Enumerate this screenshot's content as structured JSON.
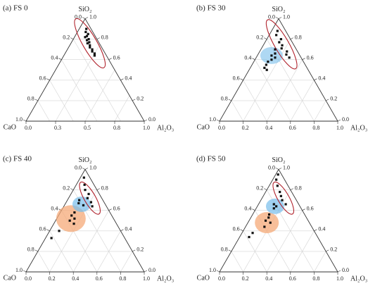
{
  "chart_data": [
    {
      "type": "ternary",
      "title": "(a) FS 0",
      "components": [
        "SiO₂",
        "CaO",
        "Al₂O₃"
      ],
      "ticks": [
        [
          {
            "value": 0,
            "label": "0.0"
          },
          {
            "value": 0.2,
            "label": "0.2"
          },
          {
            "value": 0.4,
            "label": "0.4"
          },
          {
            "value": 0.6,
            "label": "0.6"
          },
          {
            "value": 0.8,
            "label": "0.8"
          },
          {
            "value": 1,
            "label": "1.0"
          }
        ],
        [
          {
            "value": 0,
            "label": "0.0"
          },
          {
            "value": 0.2,
            "label": "0.2"
          },
          {
            "value": 0.4,
            "label": "0.4"
          },
          {
            "value": 0.6,
            "label": "0.6"
          },
          {
            "value": 0.8,
            "label": "0.8"
          },
          {
            "value": 1,
            "label": "1.0"
          }
        ],
        [
          {
            "value": 0,
            "label": "0.0"
          },
          {
            "value": 0.25,
            "label": "0.3"
          },
          {
            "value": 0.5,
            "label": "0.5"
          },
          {
            "value": 0.75,
            "label": "0.8"
          },
          {
            "value": 1,
            "label": "1.0"
          }
        ]
      ],
      "grid": true,
      "color": "#111111",
      "values": [
        [
          0.9,
          0.04,
          0.06
        ],
        [
          0.87,
          0.06,
          0.07
        ],
        [
          0.85,
          0.05,
          0.1
        ],
        [
          0.83,
          0.07,
          0.1
        ],
        [
          0.82,
          0.09,
          0.09
        ],
        [
          0.8,
          0.07,
          0.13
        ],
        [
          0.79,
          0.09,
          0.12
        ],
        [
          0.77,
          0.08,
          0.15
        ],
        [
          0.76,
          0.1,
          0.14
        ],
        [
          0.74,
          0.09,
          0.17
        ],
        [
          0.72,
          0.1,
          0.18
        ],
        [
          0.7,
          0.09,
          0.21
        ],
        [
          0.68,
          0.1,
          0.22
        ],
        [
          0.66,
          0.09,
          0.25
        ],
        [
          0.64,
          0.1,
          0.26
        ]
      ]
    },
    {
      "type": "ternary",
      "title": "(b) FS 30",
      "components": [
        "SiO₂",
        "CaO",
        "Al₂O₃"
      ],
      "ticks": [
        [
          {
            "value": 0,
            "label": "0.0"
          },
          {
            "value": 0.2,
            "label": "0.2"
          },
          {
            "value": 0.4,
            "label": "0.4"
          },
          {
            "value": 0.6,
            "label": "0.6"
          },
          {
            "value": 0.8,
            "label": "0.8"
          },
          {
            "value": 1,
            "label": "1.0"
          }
        ],
        [
          {
            "value": 0,
            "label": "0.0"
          },
          {
            "value": 0.2,
            "label": "0.2"
          },
          {
            "value": 0.4,
            "label": "0.4"
          },
          {
            "value": 0.6,
            "label": "0.6"
          },
          {
            "value": 0.8,
            "label": "0.8"
          },
          {
            "value": 1,
            "label": "1.0"
          }
        ],
        [
          {
            "value": 0,
            "label": "0.0"
          },
          {
            "value": 0.2,
            "label": "0.2"
          },
          {
            "value": 0.4,
            "label": "0.4"
          },
          {
            "value": 0.6,
            "label": "0.6"
          },
          {
            "value": 0.8,
            "label": "0.8"
          },
          {
            "value": 1,
            "label": "1.0"
          }
        ]
      ],
      "grid": true,
      "color": "#111111",
      "values": [
        [
          0.88,
          0.07,
          0.05
        ],
        [
          0.84,
          0.1,
          0.06
        ],
        [
          0.8,
          0.08,
          0.12
        ],
        [
          0.77,
          0.11,
          0.12
        ],
        [
          0.74,
          0.1,
          0.16
        ],
        [
          0.71,
          0.12,
          0.17
        ],
        [
          0.68,
          0.09,
          0.23
        ],
        [
          0.65,
          0.11,
          0.24
        ],
        [
          0.62,
          0.1,
          0.28
        ],
        [
          0.7,
          0.18,
          0.12
        ],
        [
          0.66,
          0.2,
          0.14
        ],
        [
          0.64,
          0.24,
          0.12
        ],
        [
          0.62,
          0.22,
          0.16
        ],
        [
          0.6,
          0.26,
          0.14
        ],
        [
          0.58,
          0.3,
          0.12
        ],
        [
          0.55,
          0.33,
          0.12
        ],
        [
          0.52,
          0.36,
          0.12
        ],
        [
          0.5,
          0.35,
          0.15
        ]
      ]
    },
    {
      "type": "ternary",
      "title": "(c) FS 40",
      "components": [
        "SiO₂",
        "CaO",
        "Al₂O₃"
      ],
      "ticks": [
        [
          {
            "value": 0,
            "label": "0.0"
          },
          {
            "value": 0.2,
            "label": "0.2"
          },
          {
            "value": 0.4,
            "label": "0.4"
          },
          {
            "value": 0.6,
            "label": "0.6"
          },
          {
            "value": 0.8,
            "label": "0.8"
          },
          {
            "value": 1,
            "label": "1.0"
          }
        ],
        [
          {
            "value": 0,
            "label": "0.0"
          },
          {
            "value": 0.2,
            "label": "0.2"
          },
          {
            "value": 0.4,
            "label": "0.4"
          },
          {
            "value": 0.6,
            "label": "0.6"
          },
          {
            "value": 0.8,
            "label": "0.8"
          },
          {
            "value": 1,
            "label": "1.0"
          }
        ],
        [
          {
            "value": 0,
            "label": "0.0"
          },
          {
            "value": 0.2,
            "label": "0.2"
          },
          {
            "value": 0.4,
            "label": "0.4"
          },
          {
            "value": 0.6,
            "label": "0.6"
          },
          {
            "value": 0.8,
            "label": "0.8"
          },
          {
            "value": 1,
            "label": "1.0"
          }
        ]
      ],
      "grid": true,
      "color": "#111111",
      "values": [
        [
          0.92,
          0.05,
          0.03
        ],
        [
          0.85,
          0.08,
          0.07
        ],
        [
          0.8,
          0.1,
          0.1
        ],
        [
          0.76,
          0.09,
          0.15
        ],
        [
          0.72,
          0.12,
          0.16
        ],
        [
          0.68,
          0.11,
          0.21
        ],
        [
          0.64,
          0.12,
          0.24
        ],
        [
          0.7,
          0.2,
          0.1
        ],
        [
          0.67,
          0.22,
          0.11
        ],
        [
          0.65,
          0.19,
          0.16
        ],
        [
          0.58,
          0.3,
          0.12
        ],
        [
          0.55,
          0.34,
          0.11
        ],
        [
          0.52,
          0.33,
          0.15
        ],
        [
          0.5,
          0.38,
          0.12
        ],
        [
          0.47,
          0.36,
          0.17
        ],
        [
          0.4,
          0.52,
          0.08
        ],
        [
          0.33,
          0.62,
          0.05
        ]
      ]
    },
    {
      "type": "ternary",
      "title": "(d) FS 50",
      "components": [
        "SiO₂",
        "CaO",
        "Al₂O₃"
      ],
      "ticks": [
        [
          {
            "value": 0,
            "label": "0.0"
          },
          {
            "value": 0.2,
            "label": "0.2"
          },
          {
            "value": 0.4,
            "label": "0.4"
          },
          {
            "value": 0.6,
            "label": "0.6"
          },
          {
            "value": 0.8,
            "label": "0.8"
          },
          {
            "value": 1,
            "label": "1.0"
          }
        ],
        [
          {
            "value": 0,
            "label": "0.0"
          },
          {
            "value": 0.2,
            "label": "0.2"
          },
          {
            "value": 0.4,
            "label": "0.4"
          },
          {
            "value": 0.6,
            "label": "0.6"
          },
          {
            "value": 0.8,
            "label": "0.8"
          },
          {
            "value": 1,
            "label": "1.0"
          }
        ],
        [
          {
            "value": 0,
            "label": "0.0"
          },
          {
            "value": 0.2,
            "label": "0.2"
          },
          {
            "value": 0.4,
            "label": "0.4"
          },
          {
            "value": 0.6,
            "label": "0.6"
          },
          {
            "value": 0.8,
            "label": "0.8"
          },
          {
            "value": 1,
            "label": "1.0"
          }
        ]
      ],
      "grid": true,
      "color": "#111111",
      "values": [
        [
          0.95,
          0.03,
          0.02
        ],
        [
          0.9,
          0.07,
          0.03
        ],
        [
          0.84,
          0.09,
          0.07
        ],
        [
          0.78,
          0.1,
          0.12
        ],
        [
          0.74,
          0.11,
          0.15
        ],
        [
          0.7,
          0.12,
          0.18
        ],
        [
          0.66,
          0.11,
          0.23
        ],
        [
          0.66,
          0.21,
          0.13
        ],
        [
          0.64,
          0.2,
          0.16
        ],
        [
          0.62,
          0.23,
          0.15
        ],
        [
          0.56,
          0.3,
          0.14
        ],
        [
          0.53,
          0.32,
          0.15
        ],
        [
          0.5,
          0.36,
          0.14
        ],
        [
          0.48,
          0.33,
          0.19
        ],
        [
          0.44,
          0.4,
          0.16
        ],
        [
          0.38,
          0.53,
          0.09
        ],
        [
          0.34,
          0.58,
          0.08
        ]
      ]
    }
  ]
}
